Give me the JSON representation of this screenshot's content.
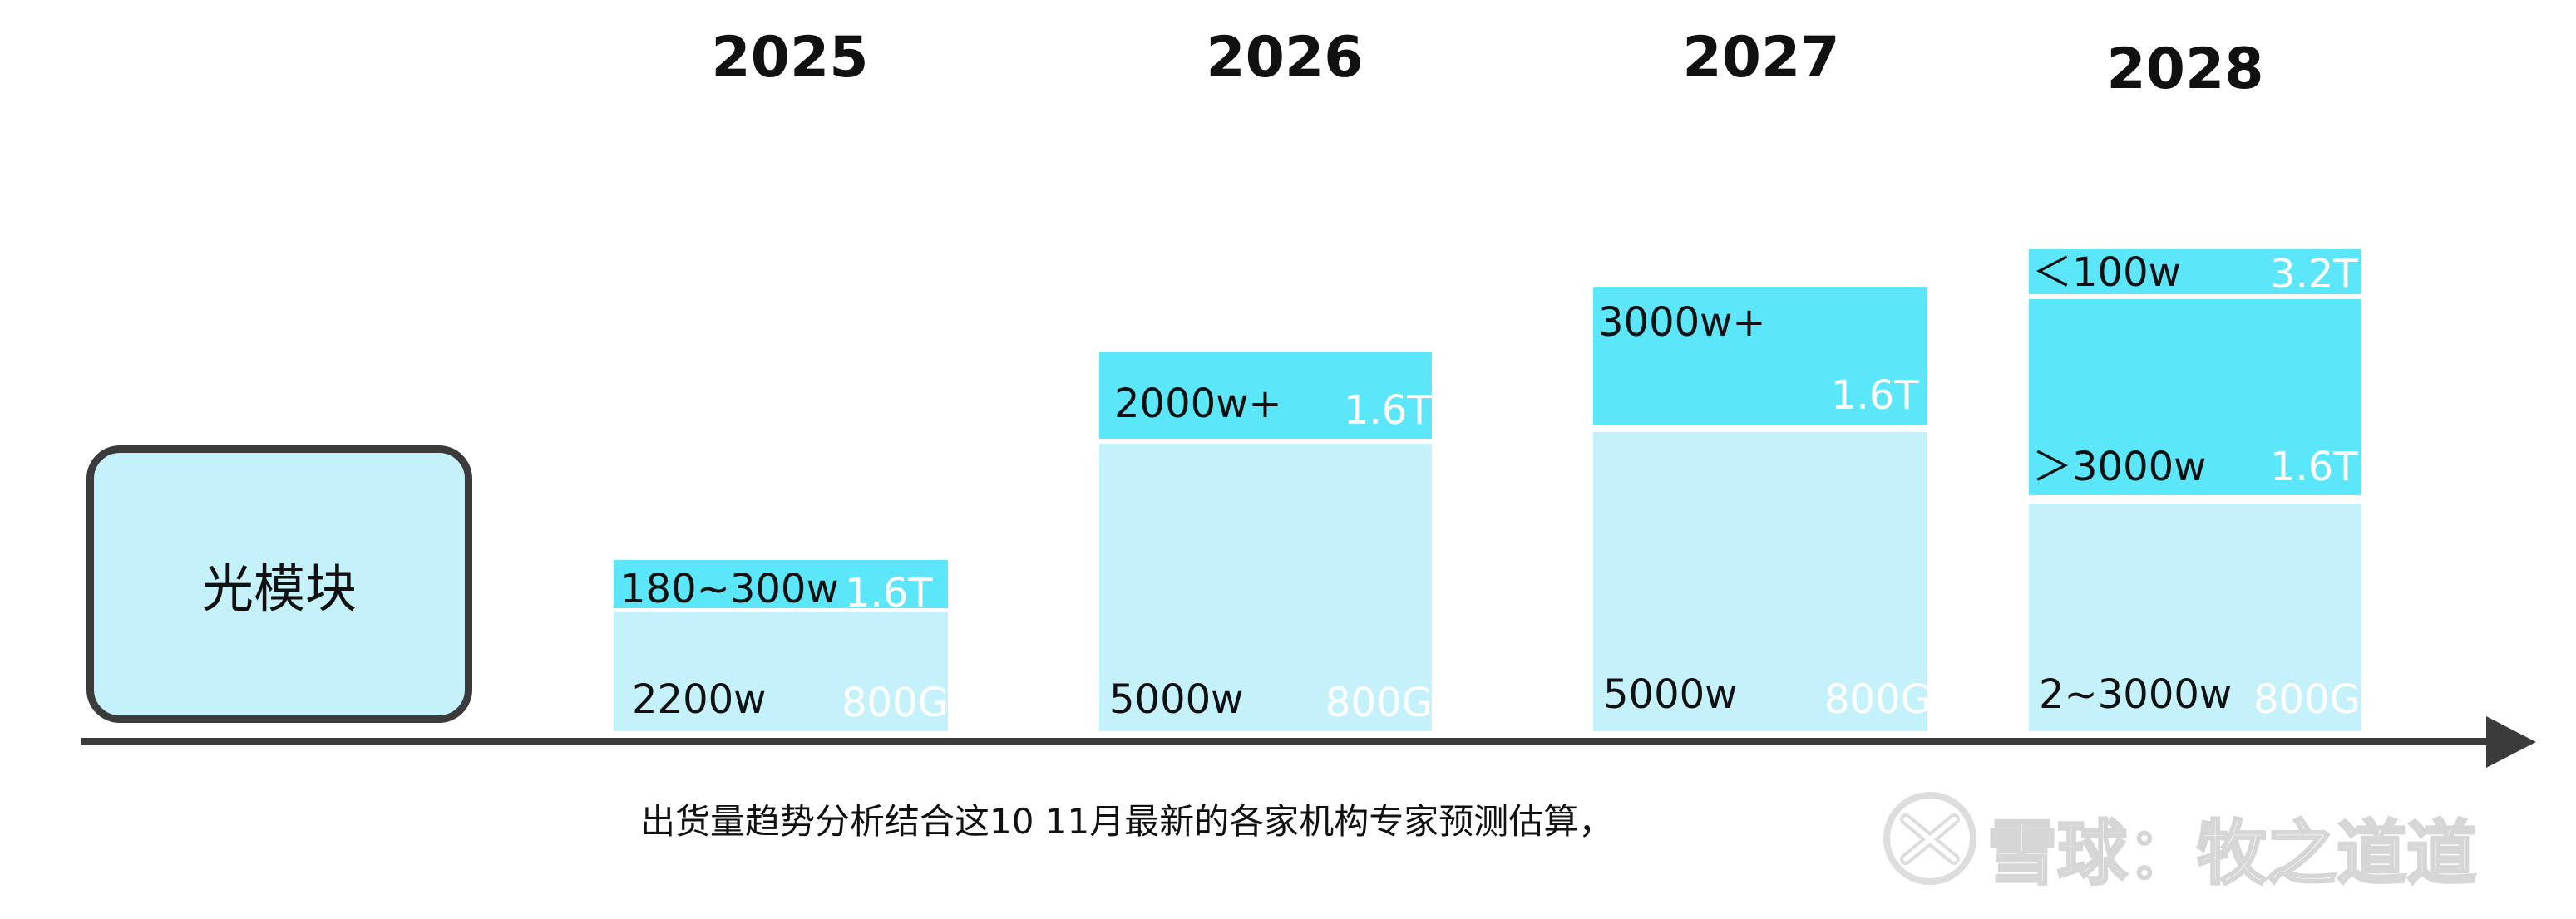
{
  "category_label": "光模块",
  "footnote": "出货量趋势分析结合这10 11月最新的各家机构专家预测估算，",
  "watermark": "雪球：牧之道道",
  "colors": {
    "dark_cyan": "#5ce6fa",
    "light_cyan": "#c5f2fa",
    "axis": "#3b3b3b"
  },
  "chart_data": {
    "type": "bar",
    "stacked": true,
    "categories": [
      "2025",
      "2026",
      "2027",
      "2028"
    ],
    "bars": [
      {
        "year": "2025",
        "segments": [
          {
            "spec": "800G",
            "volume": "2200w"
          },
          {
            "spec": "1.6T",
            "volume": "180~300w"
          }
        ]
      },
      {
        "year": "2026",
        "segments": [
          {
            "spec": "800G",
            "volume": "5000w"
          },
          {
            "spec": "1.6T",
            "volume": "2000w+"
          }
        ]
      },
      {
        "year": "2027",
        "segments": [
          {
            "spec": "800G",
            "volume": "5000w"
          },
          {
            "spec": "1.6T",
            "volume": "3000w+"
          }
        ]
      },
      {
        "year": "2028",
        "segments": [
          {
            "spec": "800G",
            "volume": "2~3000w"
          },
          {
            "spec": "1.6T",
            "volume": "＞3000w"
          },
          {
            "spec": "3.2T",
            "volume": "＜100w"
          }
        ]
      }
    ]
  }
}
